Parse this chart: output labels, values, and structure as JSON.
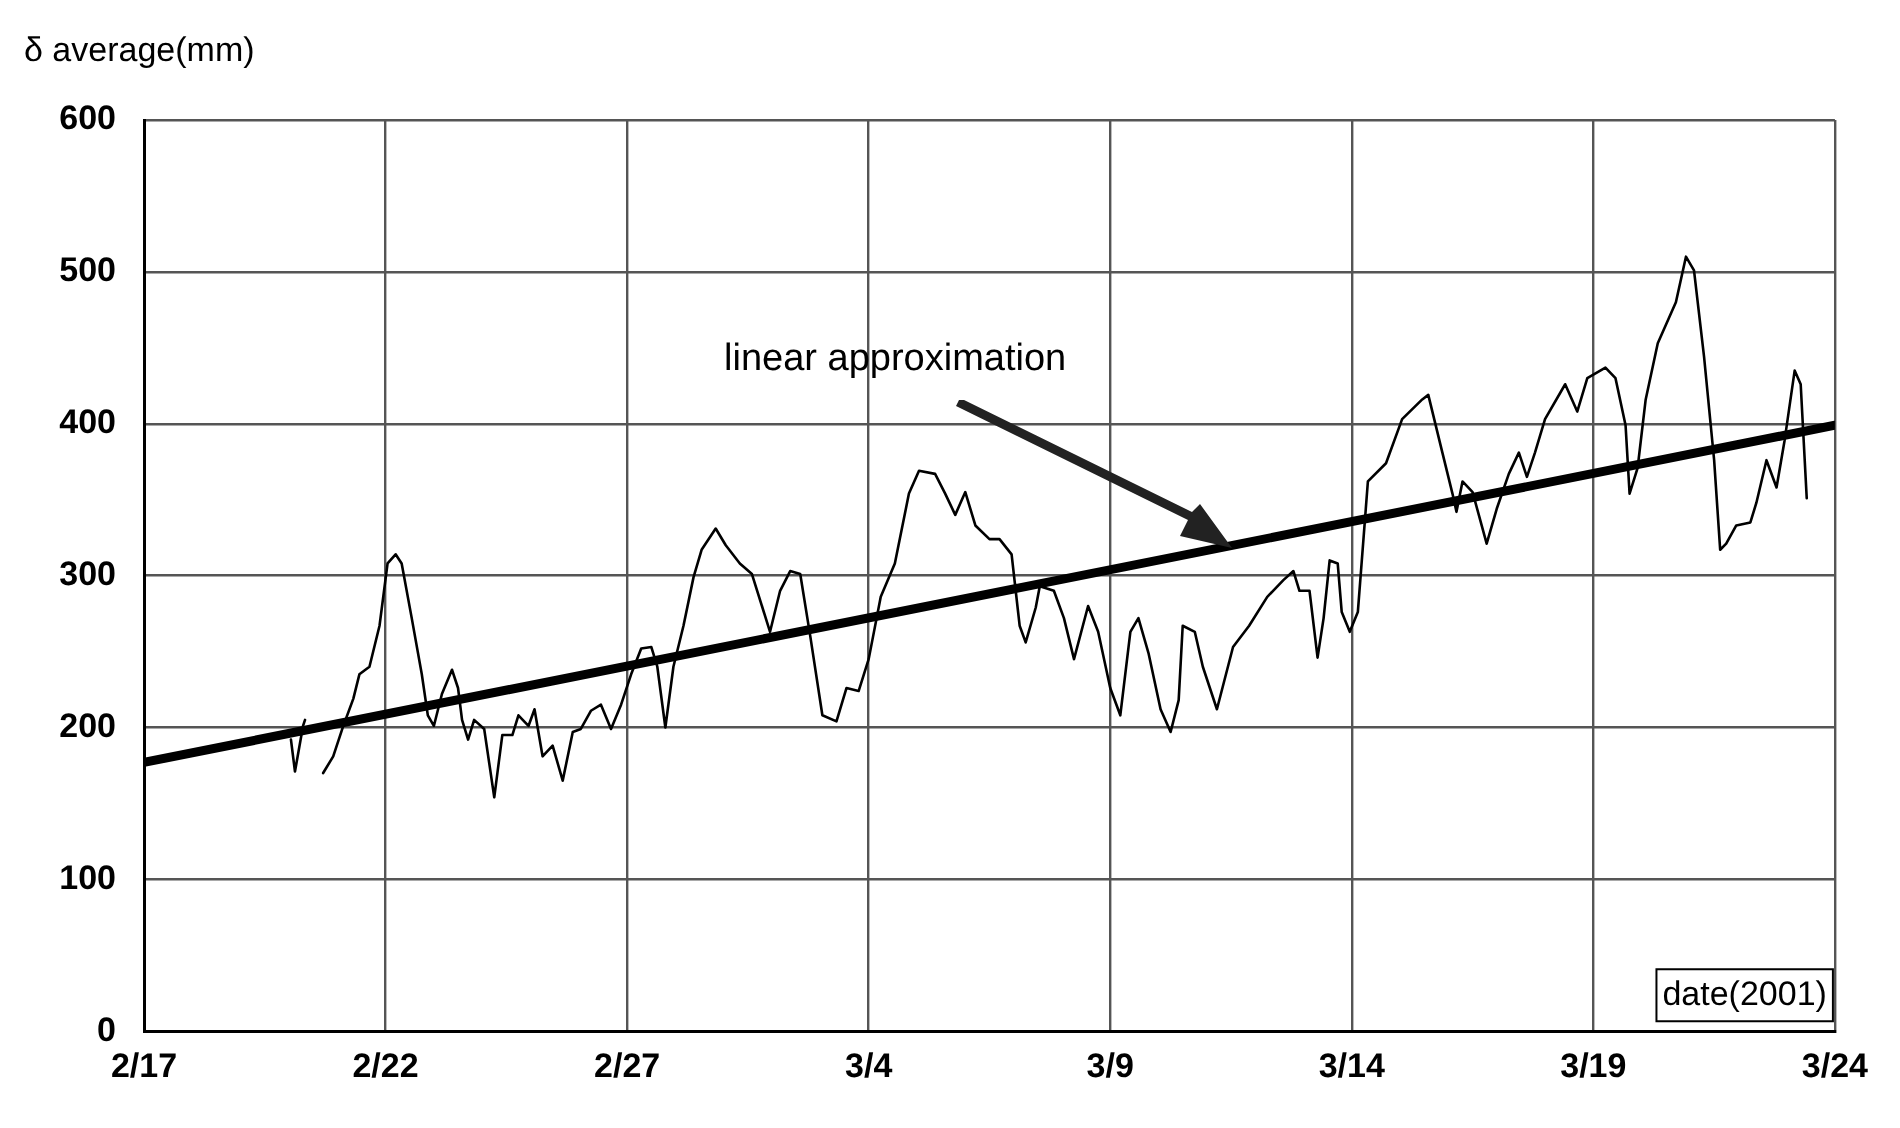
{
  "chart_data": {
    "type": "line",
    "ylabel": "δ average(mm)",
    "xlabel": "date(2001)",
    "xlim": [
      "2001-02-17",
      "2001-03-24"
    ],
    "xticks": [
      {
        "value": "2001-02-17",
        "label": "2/17"
      },
      {
        "value": "2001-02-22",
        "label": "2/22"
      },
      {
        "value": "2001-02-27",
        "label": "2/27"
      },
      {
        "value": "2001-03-04",
        "label": "3/4"
      },
      {
        "value": "2001-03-09",
        "label": "3/9"
      },
      {
        "value": "2001-03-14",
        "label": "3/14"
      },
      {
        "value": "2001-03-19",
        "label": "3/19"
      },
      {
        "value": "2001-03-24",
        "label": "3/24"
      }
    ],
    "ylim": [
      0,
      600
    ],
    "yticks": [
      0,
      100,
      200,
      300,
      400,
      500,
      600
    ],
    "grid": true,
    "legend": false,
    "marker": "none",
    "line_style": "solid",
    "annotations": [
      "linear approximation"
    ],
    "series": [
      {
        "color": "#000000",
        "x": [
          "2001-02-20T01:00",
          "2001-02-20T03:00",
          "2001-02-20T07:00",
          "2001-02-20T08:00",
          "2001-02-20T12:00",
          "2001-02-20T17:00",
          "2001-02-20T22:00",
          "2001-02-21T03:00",
          "2001-02-21T08:00",
          "2001-02-21T11:00",
          "2001-02-21T16:00",
          "2001-02-21T21:00",
          "2001-02-22T01:00",
          "2001-02-22T05:00",
          "2001-02-22T08:00",
          "2001-02-22T13:00",
          "2001-02-22T18:00",
          "2001-02-22T21:00",
          "2001-02-23T00:00",
          "2001-02-23T04:00",
          "2001-02-23T09:00",
          "2001-02-23T12:00",
          "2001-02-23T14:00",
          "2001-02-23T17:00",
          "2001-02-23T20:00",
          "2001-02-24T01:00",
          "2001-02-24T06:00",
          "2001-02-24T10:00",
          "2001-02-24T15:00",
          "2001-02-24T18:00",
          "2001-02-24T23:00",
          "2001-02-25T02:00",
          "2001-02-25T06:00",
          "2001-02-25T11:00",
          "2001-02-25T16:00",
          "2001-02-25T21:00",
          "2001-02-26T01:00",
          "2001-02-26T06:00",
          "2001-02-26T11:00",
          "2001-02-26T16:00",
          "2001-02-26T21:00",
          "2001-02-27T02:00",
          "2001-02-27T07:00",
          "2001-02-27T12:00",
          "2001-02-27T15:00",
          "2001-02-27T19:00",
          "2001-02-27T23:00",
          "2001-02-28T04:00",
          "2001-02-28T09:00",
          "2001-02-28T13:00",
          "2001-02-28T20:00",
          "2001-03-01T01:00",
          "2001-03-01T08:00",
          "2001-03-01T14:00",
          "2001-03-01T23:00",
          "2001-03-02T04:00",
          "2001-03-02T09:00",
          "2001-03-02T14:00",
          "2001-03-02T19:00",
          "2001-03-03T01:00",
          "2001-03-03T08:00",
          "2001-03-03T13:00",
          "2001-03-03T19:00",
          "2001-03-04T00:00",
          "2001-03-04T06:00",
          "2001-03-04T13:00",
          "2001-03-04T20:00",
          "2001-03-05T01:00",
          "2001-03-05T09:00",
          "2001-03-05T14:00",
          "2001-03-05T19:00",
          "2001-03-06T00:00",
          "2001-03-06T05:00",
          "2001-03-06T12:00",
          "2001-03-06T17:00",
          "2001-03-06T23:00",
          "2001-03-07T03:00",
          "2001-03-07T06:00",
          "2001-03-07T11:00",
          "2001-03-07T13:00",
          "2001-03-07T20:00",
          "2001-03-08T01:00",
          "2001-03-08T06:00",
          "2001-03-08T13:00",
          "2001-03-08T18:00",
          "2001-03-09T00:00",
          "2001-03-09T05:00",
          "2001-03-09T10:00",
          "2001-03-09T14:00",
          "2001-03-09T19:00",
          "2001-03-10T01:00",
          "2001-03-10T06:00",
          "2001-03-10T10:00",
          "2001-03-10T12:00",
          "2001-03-10T18:00",
          "2001-03-10T22:00",
          "2001-03-11T05:00",
          "2001-03-11T13:00",
          "2001-03-11T21:00",
          "2001-03-12T06:00",
          "2001-03-12T14:00",
          "2001-03-12T19:00",
          "2001-03-12T22:00",
          "2001-03-13T03:00",
          "2001-03-13T07:00",
          "2001-03-13T10:00",
          "2001-03-13T13:00",
          "2001-03-13T17:00",
          "2001-03-13T19:00",
          "2001-03-13T23:00",
          "2001-03-14T03:00",
          "2001-03-14T08:00",
          "2001-03-14T17:00",
          "2001-03-15T01:00",
          "2001-03-15T11:00",
          "2001-03-15T14:00",
          "2001-03-15T21:00",
          "2001-03-16T02:00",
          "2001-03-16T04:00",
          "2001-03-16T07:00",
          "2001-03-16T12:00",
          "2001-03-16T19:00",
          "2001-03-17T00:00",
          "2001-03-17T06:00",
          "2001-03-17T11:00",
          "2001-03-17T15:00",
          "2001-03-17T19:00",
          "2001-03-18T00:00",
          "2001-03-18T10:00",
          "2001-03-18T16:00",
          "2001-03-18T21:00",
          "2001-03-19T06:00",
          "2001-03-19T11:00",
          "2001-03-19T16:00",
          "2001-03-19T18:00",
          "2001-03-19T22:00",
          "2001-03-20T02:00",
          "2001-03-20T08:00",
          "2001-03-20T17:00",
          "2001-03-20T22:00",
          "2001-03-21T02:00",
          "2001-03-21T07:00",
          "2001-03-21T12:00",
          "2001-03-21T15:00",
          "2001-03-21T18:00",
          "2001-03-21T23:00",
          "2001-03-22T06:00",
          "2001-03-22T09:00",
          "2001-03-22T14:00",
          "2001-03-22T19:00",
          "2001-03-22T23:00",
          "2001-03-23T04:00",
          "2001-03-23T07:00",
          "2001-03-23T10:00"
        ],
        "values": [
          192,
          171,
          201,
          205,
          null,
          170,
          181,
          201,
          219,
          235,
          240,
          267,
          308,
          314,
          308,
          272,
          235,
          208,
          201,
          222,
          238,
          226,
          205,
          192,
          205,
          199,
          154,
          195,
          195,
          208,
          201,
          212,
          181,
          188,
          165,
          197,
          199,
          211,
          215,
          199,
          215,
          235,
          252,
          253,
          240,
          200,
          240,
          267,
          299,
          317,
          331,
          320,
          308,
          301,
          263,
          290,
          303,
          301,
          260,
          208,
          204,
          226,
          224,
          245,
          286,
          308,
          354,
          369,
          367,
          354,
          340,
          355,
          333,
          324,
          324,
          314,
          267,
          256,
          279,
          293,
          290,
          272,
          245,
          280,
          263,
          226,
          208,
          263,
          272,
          249,
          212,
          197,
          218,
          267,
          263,
          240,
          212,
          253,
          267,
          286,
          297,
          303,
          290,
          290,
          246,
          272,
          310,
          308,
          276,
          263,
          276,
          362,
          374,
          403,
          416,
          419,
          381,
          354,
          342,
          362,
          355,
          321,
          344,
          367,
          381,
          365,
          381,
          403,
          426,
          408,
          430,
          437,
          430,
          399,
          354,
          371,
          416,
          453,
          480,
          510,
          501,
          444,
          376,
          317,
          321,
          333,
          335,
          348,
          376,
          358,
          389,
          435,
          426,
          351
        ]
      },
      {
        "type": "line",
        "color": "#000000",
        "x": [
          "2001-02-17",
          "2001-03-24"
        ],
        "values": [
          177,
          399
        ]
      }
    ]
  }
}
